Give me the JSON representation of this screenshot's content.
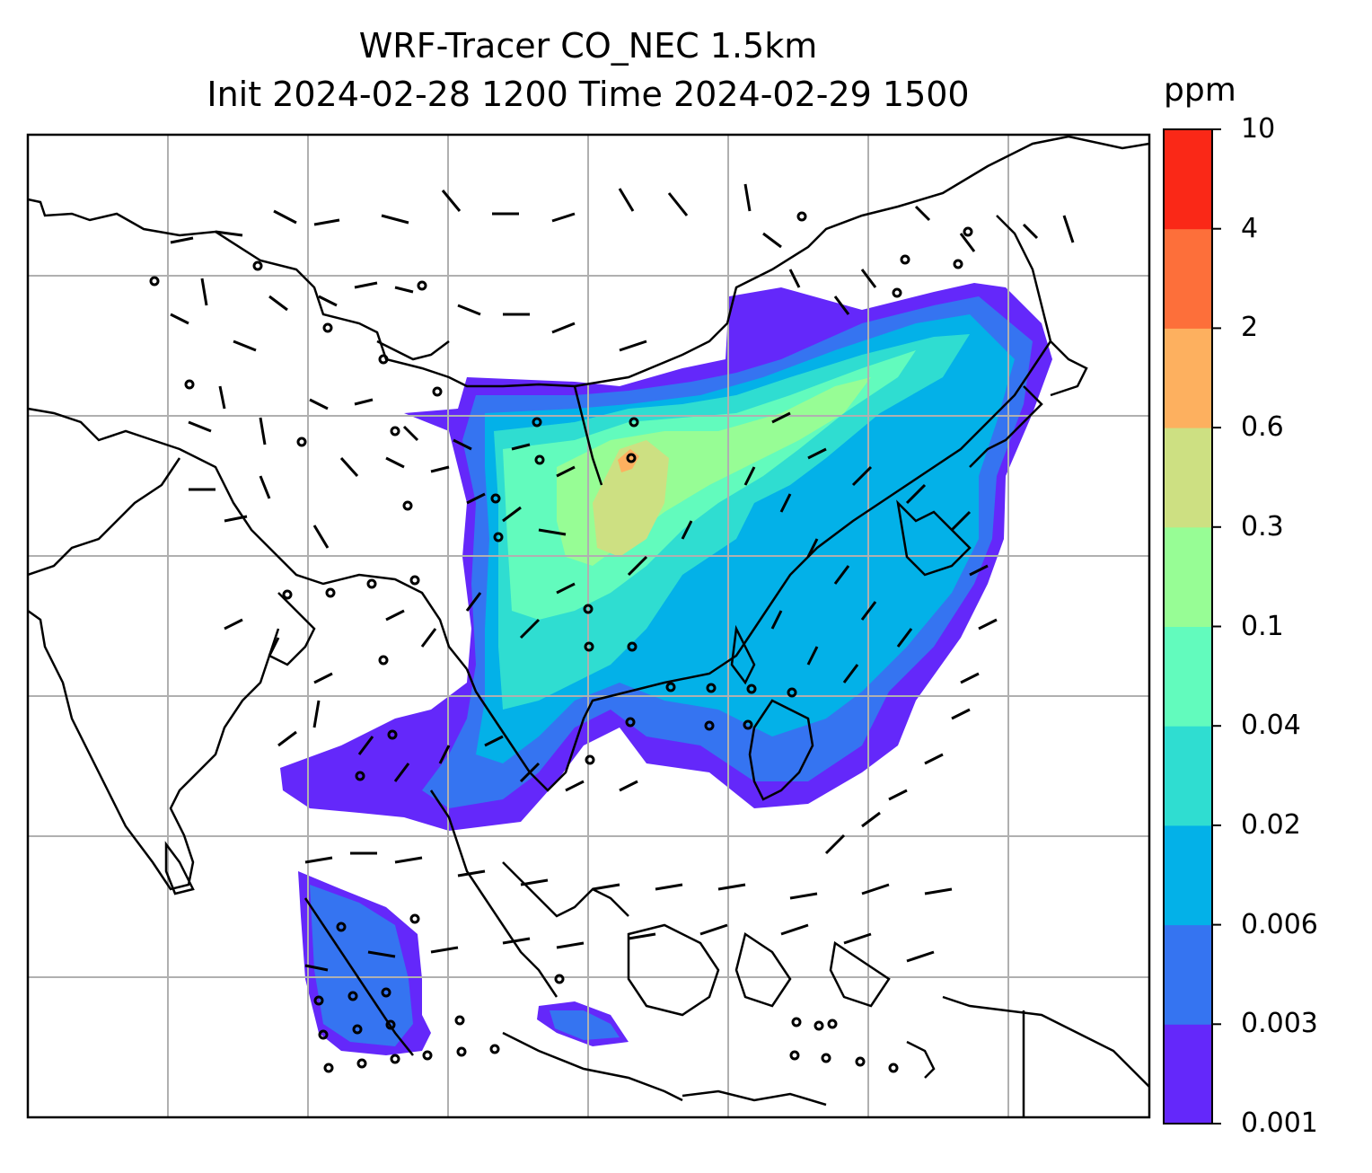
{
  "title": {
    "line1": "WRF-Tracer CO_NEC 1.5km",
    "line2": "Init 2024-02-28 1200 Time 2024-02-29 1500"
  },
  "colorbar": {
    "unit": "ppm",
    "levels": [
      "0.001",
      "0.003",
      "0.006",
      "0.02",
      "0.04",
      "0.1",
      "0.3",
      "0.6",
      "2",
      "4",
      "10"
    ],
    "colors": [
      "#6428fa",
      "#3574f1",
      "#03b1e8",
      "#2fddd1",
      "#62fbbd",
      "#97fd95",
      "#cde082",
      "#fdb05f",
      "#fd6f3a",
      "#fa2817"
    ]
  },
  "map": {
    "gridlines": true,
    "gridline_color": "#b0b0b0",
    "coastline_color": "#000000",
    "field": "CO tracer concentration with wind barbs"
  }
}
